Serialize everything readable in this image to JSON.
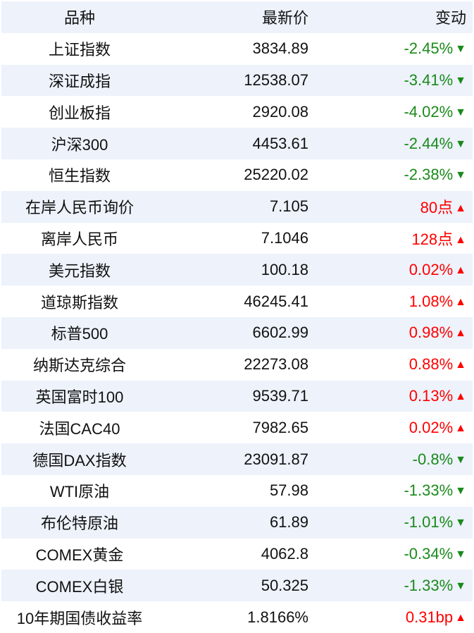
{
  "header": {
    "name": "品种",
    "price": "最新价",
    "change": "变动"
  },
  "colors": {
    "up": "#ff0000",
    "down": "#1a8a1a",
    "stripe": "#edf2fb"
  },
  "rows": [
    {
      "name": "上证指数",
      "price": "3834.89",
      "change": "-2.45%",
      "dir": "down",
      "arrow": "▼"
    },
    {
      "name": "深证成指",
      "price": "12538.07",
      "change": "-3.41%",
      "dir": "down",
      "arrow": "▼"
    },
    {
      "name": "创业板指",
      "price": "2920.08",
      "change": "-4.02%",
      "dir": "down",
      "arrow": "▼"
    },
    {
      "name": "沪深300",
      "price": "4453.61",
      "change": "-2.44%",
      "dir": "down",
      "arrow": "▼"
    },
    {
      "name": "恒生指数",
      "price": "25220.02",
      "change": "-2.38%",
      "dir": "down",
      "arrow": "▼"
    },
    {
      "name": "在岸人民币询价",
      "price": "7.105",
      "change": "80点",
      "dir": "up",
      "arrow": "▲"
    },
    {
      "name": "离岸人民币",
      "price": "7.1046",
      "change": "128点",
      "dir": "up",
      "arrow": "▲"
    },
    {
      "name": "美元指数",
      "price": "100.18",
      "change": "0.02%",
      "dir": "up",
      "arrow": "▲"
    },
    {
      "name": "道琼斯指数",
      "price": "46245.41",
      "change": "1.08%",
      "dir": "up",
      "arrow": "▲"
    },
    {
      "name": "标普500",
      "price": "6602.99",
      "change": "0.98%",
      "dir": "up",
      "arrow": "▲"
    },
    {
      "name": "纳斯达克综合",
      "price": "22273.08",
      "change": "0.88%",
      "dir": "up",
      "arrow": "▲"
    },
    {
      "name": "英国富时100",
      "price": "9539.71",
      "change": "0.13%",
      "dir": "up",
      "arrow": "▲"
    },
    {
      "name": "法国CAC40",
      "price": "7982.65",
      "change": "0.02%",
      "dir": "up",
      "arrow": "▲"
    },
    {
      "name": "德国DAX指数",
      "price": "23091.87",
      "change": "-0.8%",
      "dir": "down",
      "arrow": "▼"
    },
    {
      "name": "WTI原油",
      "price": "57.98",
      "change": "-1.33%",
      "dir": "down",
      "arrow": "▼"
    },
    {
      "name": "布伦特原油",
      "price": "61.89",
      "change": "-1.01%",
      "dir": "down",
      "arrow": "▼"
    },
    {
      "name": "COMEX黄金",
      "price": "4062.8",
      "change": "-0.34%",
      "dir": "down",
      "arrow": "▼"
    },
    {
      "name": "COMEX白银",
      "price": "50.325",
      "change": "-1.33%",
      "dir": "down",
      "arrow": "▼"
    },
    {
      "name": "10年期国债收益率",
      "price": "1.8166%",
      "change": "0.31bp",
      "dir": "up",
      "arrow": "▲"
    }
  ]
}
